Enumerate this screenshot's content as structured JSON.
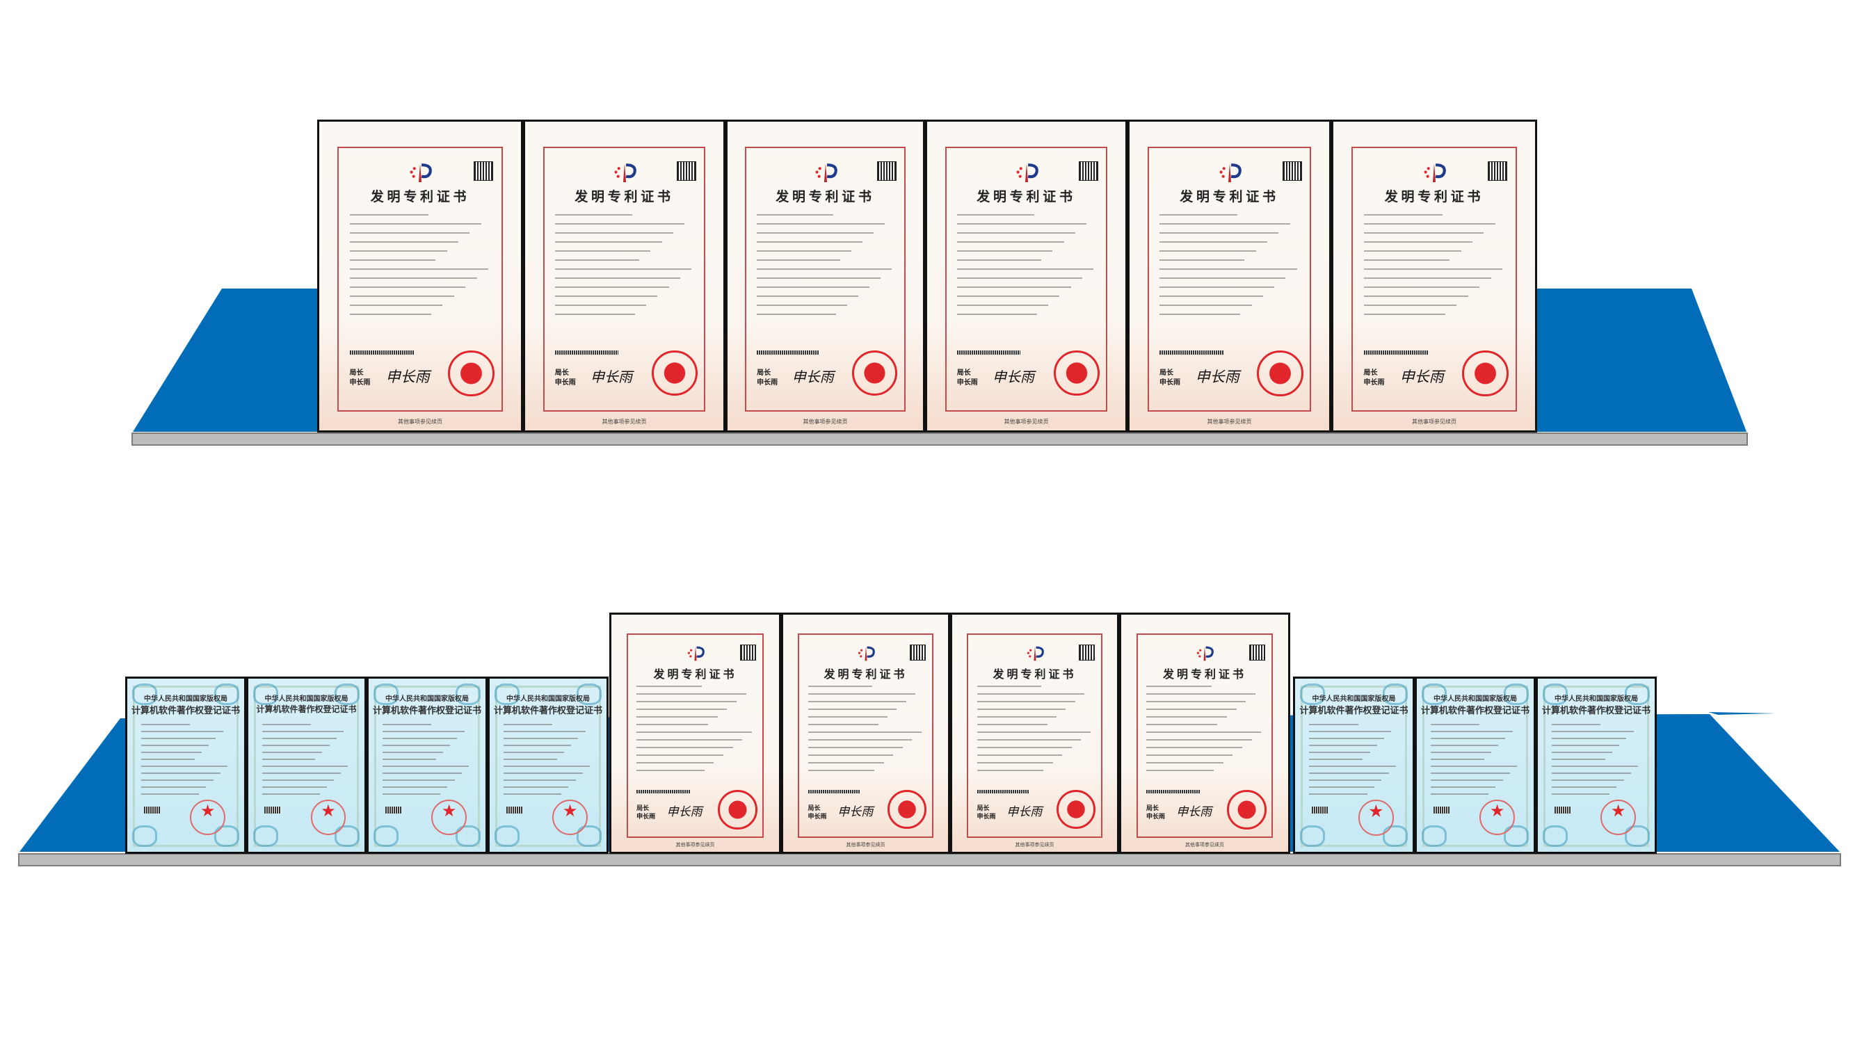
{
  "colors": {
    "shelf_blue": "#016cb8",
    "shelf_gray": "#bcbcbc",
    "shelf_gray_edge": "#7d7d7d",
    "patent_red": "#c44b4b",
    "seal_red": "#e0262b",
    "software_blue": "#c9eaf5"
  },
  "patent": {
    "title": "发明专利证书",
    "signer_title": "局长",
    "signer_name": "申长雨",
    "signature": "申长雨",
    "footer": "其他事项参见续页"
  },
  "software": {
    "issuer": "中华人民共和国国家版权局",
    "title": "计算机软件著作权登记证书"
  },
  "top_row": [
    "patent",
    "patent",
    "patent",
    "patent",
    "patent",
    "patent"
  ],
  "bottom_row": [
    "software",
    "software",
    "software",
    "software",
    "patent",
    "patent",
    "patent",
    "patent",
    "software",
    "software",
    "software"
  ]
}
